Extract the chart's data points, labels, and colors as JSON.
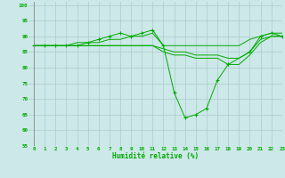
{
  "xlabel": "Humidité relative (%)",
  "background_color": "#cce8e8",
  "grid_color": "#aacccc",
  "line_color": "#00aa00",
  "xlim": [
    -0.5,
    23
  ],
  "ylim": [
    55,
    101
  ],
  "yticks": [
    55,
    60,
    65,
    70,
    75,
    80,
    85,
    90,
    95,
    100
  ],
  "xticks": [
    0,
    1,
    2,
    3,
    4,
    5,
    6,
    7,
    8,
    9,
    10,
    11,
    12,
    13,
    14,
    15,
    16,
    17,
    18,
    19,
    20,
    21,
    22,
    23
  ],
  "series": [
    {
      "x": [
        0,
        1,
        2,
        3,
        4,
        5,
        6,
        7,
        8,
        9,
        10,
        11,
        12,
        13,
        14,
        15,
        16,
        17,
        18,
        20,
        21,
        22,
        23
      ],
      "y": [
        87,
        87,
        87,
        87,
        87,
        88,
        89,
        90,
        91,
        90,
        91,
        92,
        87,
        72,
        64,
        65,
        67,
        76,
        81,
        85,
        90,
        91,
        90
      ],
      "marker": true
    },
    {
      "x": [
        0,
        1,
        2,
        3,
        4,
        5,
        6,
        7,
        8,
        9,
        10,
        11,
        12,
        13,
        14,
        15,
        16,
        17,
        18,
        19,
        20,
        21,
        22,
        23
      ],
      "y": [
        87,
        87,
        87,
        87,
        88,
        88,
        88,
        89,
        89,
        90,
        90,
        91,
        87,
        87,
        87,
        87,
        87,
        87,
        87,
        87,
        89,
        90,
        91,
        91
      ],
      "marker": false
    },
    {
      "x": [
        0,
        1,
        2,
        3,
        4,
        5,
        6,
        7,
        8,
        9,
        10,
        11,
        12,
        13,
        14,
        15,
        16,
        17,
        18,
        19,
        20,
        21,
        22,
        23
      ],
      "y": [
        87,
        87,
        87,
        87,
        87,
        87,
        87,
        87,
        87,
        87,
        87,
        87,
        86,
        85,
        85,
        84,
        84,
        84,
        83,
        83,
        85,
        89,
        90,
        90
      ],
      "marker": false
    },
    {
      "x": [
        0,
        1,
        2,
        3,
        4,
        5,
        6,
        7,
        8,
        9,
        10,
        11,
        12,
        13,
        14,
        15,
        16,
        17,
        18,
        19,
        20,
        21,
        22,
        23
      ],
      "y": [
        87,
        87,
        87,
        87,
        87,
        87,
        87,
        87,
        87,
        87,
        87,
        87,
        85,
        84,
        84,
        83,
        83,
        83,
        81,
        81,
        84,
        88,
        90,
        90
      ],
      "marker": false
    }
  ]
}
